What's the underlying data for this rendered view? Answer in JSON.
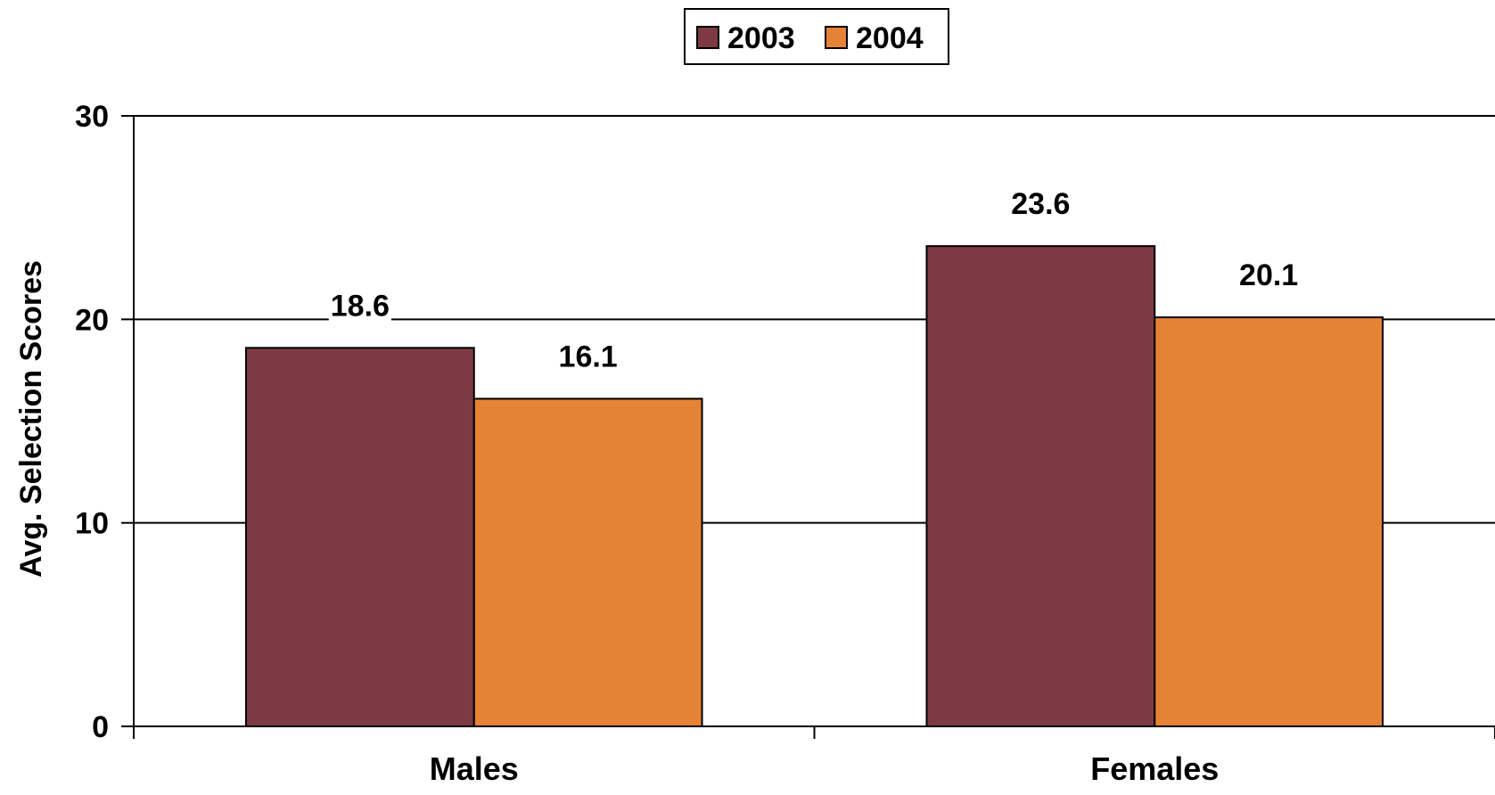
{
  "chart_data": {
    "type": "bar",
    "categories": [
      "Males",
      "Females"
    ],
    "series": [
      {
        "name": "2003",
        "values": [
          18.6,
          23.6
        ],
        "color": "#7D3A42"
      },
      {
        "name": "2004",
        "values": [
          16.1,
          20.1
        ],
        "color": "#E58236"
      }
    ],
    "data_labels": [
      [
        "18.6",
        "23.6"
      ],
      [
        "16.1",
        "20.1"
      ]
    ],
    "ylabel": "Avg. Selection Scores",
    "xlabel": "",
    "ylim": [
      0,
      30
    ],
    "yticks": [
      0,
      10,
      20,
      30
    ],
    "ytick_labels": [
      "0",
      "10",
      "20",
      "30"
    ],
    "grid": true,
    "legend_position": "top-center"
  }
}
